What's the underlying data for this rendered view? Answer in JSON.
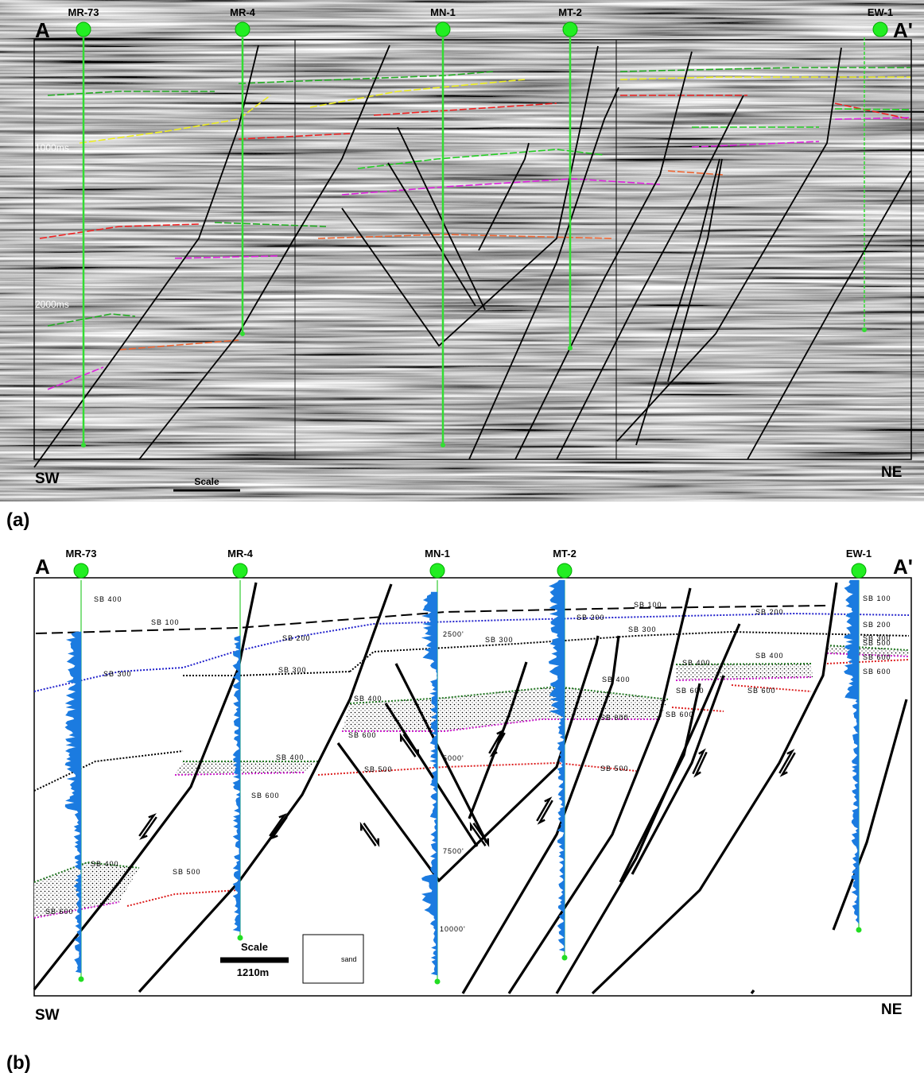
{
  "panel_a": {
    "left_end": "A",
    "right_end": "A'",
    "wells": [
      "MR-73",
      "MR-4",
      "MN-1",
      "MT-2",
      "EW-1"
    ],
    "time_labels": [
      "1000ms",
      "2000ms"
    ],
    "left_direction": "SW",
    "right_direction": "NE",
    "scale_label": "Scale",
    "caption": "(a)"
  },
  "panel_b": {
    "left_end": "A",
    "right_end": "A'",
    "wells": [
      "MR-73",
      "MR-4",
      "MN-1",
      "MT-2",
      "EW-1"
    ],
    "horizon_labels": [
      "SB 100",
      "SB 100",
      "SB 100",
      "SB 200",
      "SB 200",
      "SB 200",
      "SB 200",
      "SB 300",
      "SB 300",
      "SB 300",
      "SB 300",
      "SB 300",
      "SB 400",
      "SB 400",
      "SB 400",
      "SB 400",
      "SB 400",
      "SB 400",
      "SB 400",
      "SB 500",
      "SB 500",
      "SB 500",
      "SB 500",
      "SB 600",
      "SB 600",
      "SB 600",
      "SB 600",
      "SB 600",
      "SB 600",
      "SB 600",
      "SB 600",
      "SB 600"
    ],
    "depth_labels": [
      "2500'",
      "5000'",
      "7500'",
      "10000'"
    ],
    "left_direction": "SW",
    "right_direction": "NE",
    "scale_label": "Scale",
    "scale_length": "1210m",
    "legend_label": "sand",
    "caption": "(b)"
  }
}
